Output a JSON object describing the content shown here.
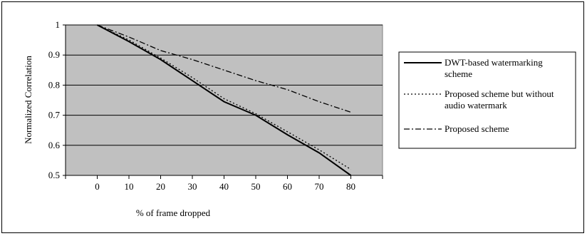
{
  "chart_data": {
    "type": "line",
    "title": "",
    "xlabel": "% of frame dropped",
    "ylabel": "Normalized Correlation",
    "x": [
      0,
      10,
      20,
      30,
      40,
      50,
      60,
      70,
      80
    ],
    "xlim": [
      -10,
      90
    ],
    "ylim": [
      0.5,
      1.0
    ],
    "yticks": [
      "0.5",
      "0.6",
      "0.7",
      "0.8",
      "0.9",
      "1"
    ],
    "xticks": [
      "0",
      "10",
      "20",
      "30",
      "40",
      "50",
      "60",
      "70",
      "80"
    ],
    "grid": true,
    "plot_background": "#c0c0c0",
    "legend_position": "right",
    "series": [
      {
        "name": "DWT-based watermarking scheme",
        "name_lines": [
          "DWT-based watermarking",
          "scheme"
        ],
        "style": "solid",
        "values": [
          1.0,
          0.945,
          0.885,
          0.815,
          0.745,
          0.7,
          0.635,
          0.575,
          0.5
        ]
      },
      {
        "name": "Proposed scheme but without audio watermark",
        "name_lines": [
          "Proposed scheme but without",
          "audio watermark"
        ],
        "style": "dotted",
        "values": [
          1.0,
          0.95,
          0.89,
          0.825,
          0.755,
          0.705,
          0.645,
          0.585,
          0.52
        ]
      },
      {
        "name": "Proposed scheme",
        "name_lines": [
          "Proposed scheme"
        ],
        "style": "dashdot",
        "values": [
          1.0,
          0.96,
          0.915,
          0.885,
          0.85,
          0.815,
          0.785,
          0.745,
          0.71
        ]
      }
    ]
  }
}
